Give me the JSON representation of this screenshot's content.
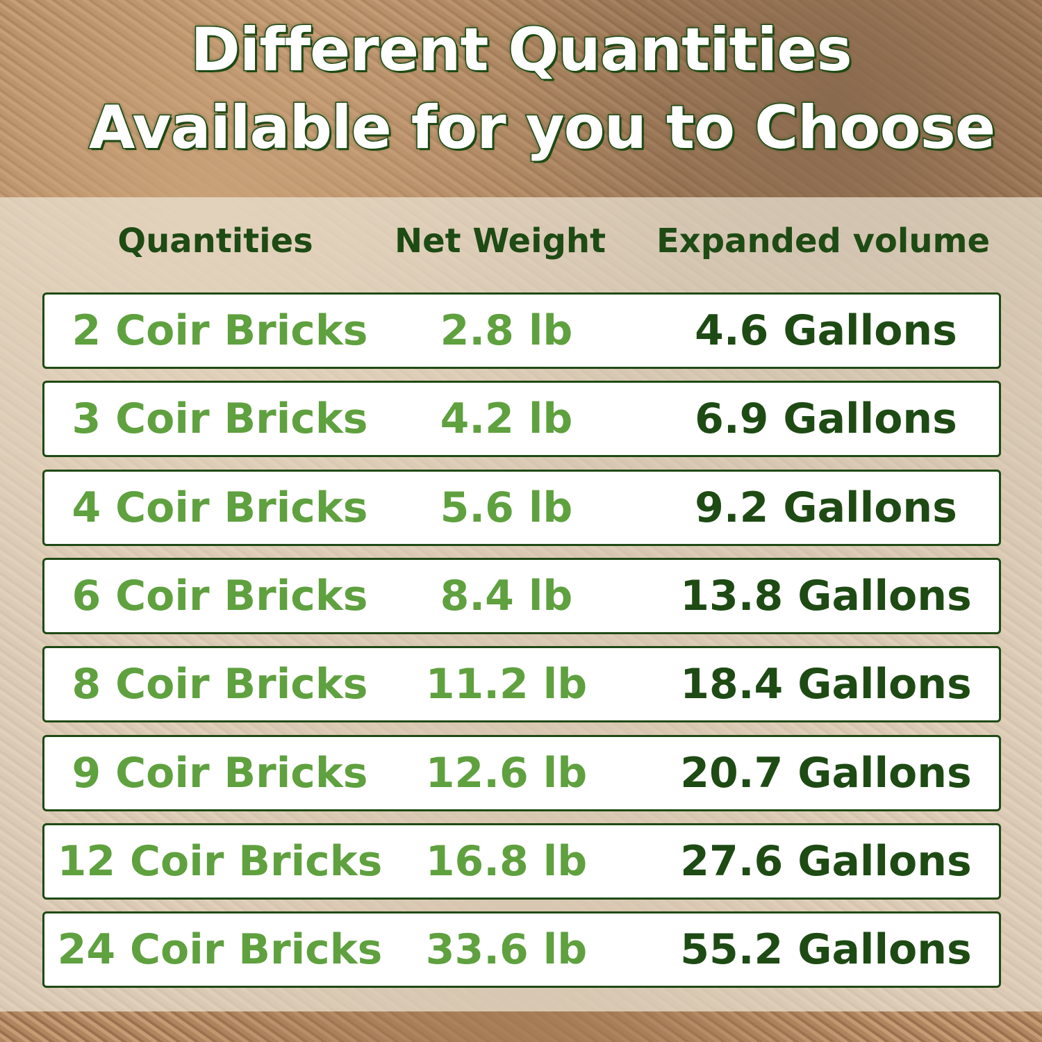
{
  "title": {
    "line1": "Different Quantities",
    "line2": "Available for you to Choose"
  },
  "headers": [
    "Quantities",
    "Net Weight",
    "Expanded volume"
  ],
  "rows": [
    [
      "2 Coir Bricks",
      "2.8 lb",
      "4.6 Gallons"
    ],
    [
      "3 Coir Bricks",
      "4.2 lb",
      "6.9 Gallons"
    ],
    [
      "4 Coir Bricks",
      "5.6 lb",
      "9.2 Gallons"
    ],
    [
      "6 Coir Bricks",
      "8.4 lb",
      "13.8 Gallons"
    ],
    [
      "8 Coir Bricks",
      "11.2 lb",
      "18.4 Gallons"
    ],
    [
      "9 Coir Bricks",
      "12.6 lb",
      "20.7 Gallons"
    ],
    [
      "12 Coir Bricks",
      "16.8 lb",
      "27.6 Gallons"
    ],
    [
      "24 Coir Bricks",
      "33.6 lb",
      "55.2 Gallons"
    ]
  ],
  "colors": {
    "dark_green": "#1e4a14",
    "light_green": "#5fa03f"
  }
}
